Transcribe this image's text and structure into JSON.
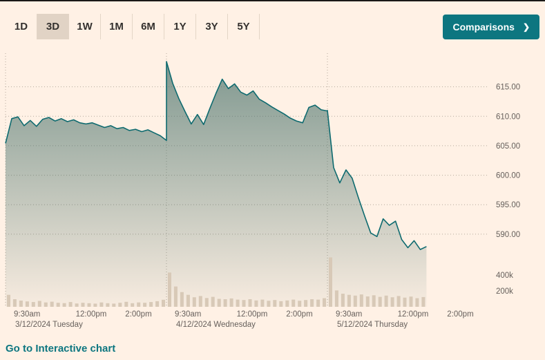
{
  "toolbar": {
    "tabs": [
      {
        "label": "1D",
        "selected": false
      },
      {
        "label": "3D",
        "selected": true
      },
      {
        "label": "1W",
        "selected": false
      },
      {
        "label": "1M",
        "selected": false
      },
      {
        "label": "6M",
        "selected": false
      },
      {
        "label": "1Y",
        "selected": false
      },
      {
        "label": "3Y",
        "selected": false
      },
      {
        "label": "5Y",
        "selected": false
      }
    ],
    "comparisons_button": {
      "label": "Comparisons",
      "chevron": "❯"
    }
  },
  "footer": {
    "interactive_chart_link": "Go to Interactive chart"
  },
  "colors": {
    "background": "#fff1e5",
    "accent_teal": "#0d7680",
    "selected_tab_bg": "#e1d3c5",
    "price_line": "#0d6a6f",
    "area_fill": "#456f68",
    "volume_bar": "#d8c9b7",
    "axis_text": "#66605c",
    "top_border": "#1a1817"
  },
  "chart_data": {
    "type": "line",
    "subtype": "intraday price area chart with volume bars, 3-day view, 15-minute intervals",
    "interval_minutes": 15,
    "legend": "none",
    "grid": "dotted horizontal price gridlines, dotted vertical day separators",
    "y_axis": {
      "side": "right",
      "tick_labels": [
        "615.00",
        "610.00",
        "605.00",
        "600.00",
        "595.00",
        "590.00"
      ],
      "tick_values": [
        615,
        610,
        605,
        600,
        595,
        590
      ],
      "domain": [
        586,
        620
      ]
    },
    "volume_axis": {
      "side": "right",
      "tick_labels": [
        "400k",
        "200k"
      ],
      "tick_values": [
        400000,
        200000
      ],
      "domain": [
        0,
        650000
      ]
    },
    "days": [
      {
        "date_label": "3/12/2024 Tuesday",
        "session_minutes": 390,
        "time_ticks": [
          {
            "label": "9:30am",
            "minute": 0
          },
          {
            "label": "12:00pm",
            "minute": 150
          },
          {
            "label": "2:00pm",
            "minute": 270
          }
        ],
        "prices": [
          605.4,
          609.6,
          609.9,
          608.4,
          609.3,
          608.3,
          609.5,
          609.8,
          609.2,
          609.6,
          609.1,
          609.4,
          608.9,
          608.7,
          608.9,
          608.5,
          608.1,
          608.4,
          607.9,
          608.1,
          607.6,
          607.8,
          607.4,
          607.7,
          607.2,
          606.7,
          605.9
        ],
        "volumes_k": [
          150,
          95,
          78,
          68,
          60,
          74,
          55,
          64,
          50,
          46,
          60,
          42,
          50,
          45,
          40,
          55,
          45,
          40,
          50,
          62,
          45,
          55,
          50,
          60,
          70,
          88
        ]
      },
      {
        "date_label": "4/12/2024 Wednesday",
        "session_minutes": 390,
        "time_ticks": [
          {
            "label": "9:30am",
            "minute": 0
          },
          {
            "label": "12:00pm",
            "minute": 150
          },
          {
            "label": "2:00pm",
            "minute": 270
          }
        ],
        "prices": [
          619.3,
          615.6,
          613.0,
          610.8,
          608.7,
          610.3,
          608.6,
          611.3,
          613.9,
          616.3,
          614.7,
          615.5,
          614.1,
          613.6,
          614.3,
          612.9,
          612.3,
          611.6,
          611.0,
          610.4,
          609.7,
          609.2,
          608.9,
          611.5,
          611.9,
          611.1,
          610.9
        ],
        "volumes_k": [
          430,
          255,
          185,
          150,
          120,
          135,
          110,
          125,
          100,
          95,
          105,
          90,
          85,
          95,
          80,
          90,
          75,
          85,
          70,
          80,
          90,
          75,
          85,
          95,
          90,
          108
        ]
      },
      {
        "date_label": "5/12/2024 Thursday",
        "session_minutes": 390,
        "time_ticks": [
          {
            "label": "9:30am",
            "minute": 0
          },
          {
            "label": "12:00pm",
            "minute": 150
          },
          {
            "label": "2:00pm",
            "minute": 270
          }
        ],
        "prices": [
          611.0,
          601.3,
          598.7,
          600.9,
          599.5,
          596.2,
          593.1,
          590.2,
          589.6,
          592.6,
          591.5,
          592.2,
          589.1,
          587.7,
          588.9,
          587.4,
          587.9
        ],
        "volumes_k": [
          620,
          205,
          165,
          150,
          140,
          155,
          130,
          145,
          125,
          140,
          120,
          135,
          115,
          128,
          108,
          122
        ]
      }
    ]
  }
}
